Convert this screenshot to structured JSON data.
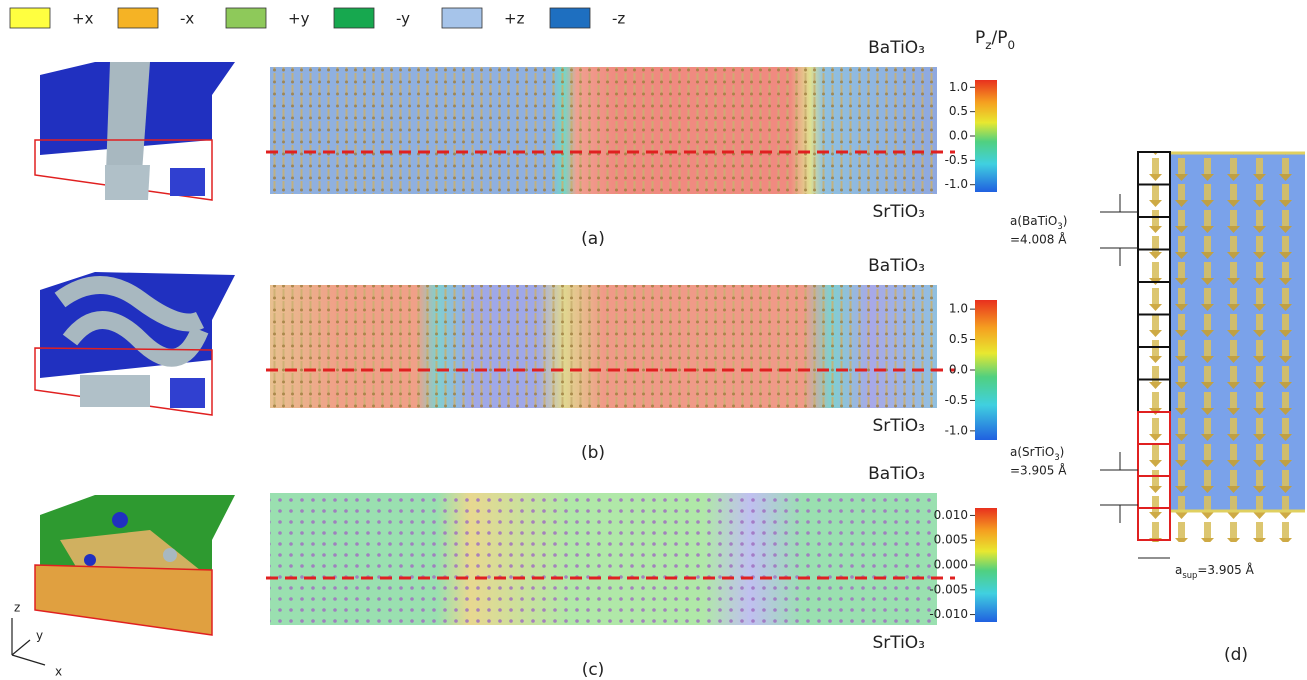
{
  "legend": [
    {
      "label": "+x",
      "color": "#ffff40"
    },
    {
      "label": "-x",
      "color": "#f5b325"
    },
    {
      "label": "+y",
      "color": "#8ec95a"
    },
    {
      "label": "-y",
      "color": "#17a84f"
    },
    {
      "label": "+z",
      "color": "#a6c4ea"
    },
    {
      "label": "-z",
      "color": "#1e6fc0"
    }
  ],
  "colorbar_title": [
    "P",
    "z",
    "/P",
    "0"
  ],
  "panels": [
    {
      "label": "(a)",
      "top_material": "BaTiO₃",
      "bottom_material": "SrTiO₃",
      "colorbar": {
        "lim": [
          -1.15,
          1.15
        ],
        "ticks": [
          {
            "value": 1,
            "label": "1.0"
          },
          0.5,
          {
            "value": 0,
            "label": "0.0"
          },
          -0.5,
          {
            "value": -1,
            "label": "-1.0"
          }
        ]
      }
    },
    {
      "label": "(b)",
      "top_material": "BaTiO₃",
      "bottom_material": "SrTiO₃",
      "colorbar": {
        "lim": [
          -1.15,
          1.15
        ],
        "ticks": [
          {
            "value": 1,
            "label": "1.0"
          },
          0.5,
          {
            "value": 0,
            "label": "0.0"
          },
          -0.5,
          {
            "value": -1,
            "label": "-1.0"
          }
        ]
      }
    },
    {
      "label": "(c)",
      "top_material": "BaTiO₃",
      "bottom_material": "SrTiO₃",
      "colorbar": {
        "lim": [
          -0.0115,
          0.0115
        ],
        "ticks": [
          {
            "value": 0.01,
            "label": "0.010"
          },
          {
            "value": 0.005,
            "label": "0.005"
          },
          {
            "value": 0,
            "label": "0.000"
          },
          {
            "value": -0.005,
            "label": "-0.005"
          },
          {
            "value": -0.01,
            "label": "-0.010"
          }
        ]
      }
    }
  ],
  "panel_d": {
    "label": "(d)",
    "a_batio3": [
      "a(BaTiO",
      "3",
      ")"
    ],
    "a_batio3_value": "=4.008 Å",
    "a_srtio3": [
      "a(SrTiO",
      "3",
      ")"
    ],
    "a_srtio3_value": "=3.905 Å",
    "a_sup": [
      "a",
      "sup",
      "=3.905 Å"
    ]
  },
  "axes": [
    "z",
    "y",
    "x"
  ]
}
